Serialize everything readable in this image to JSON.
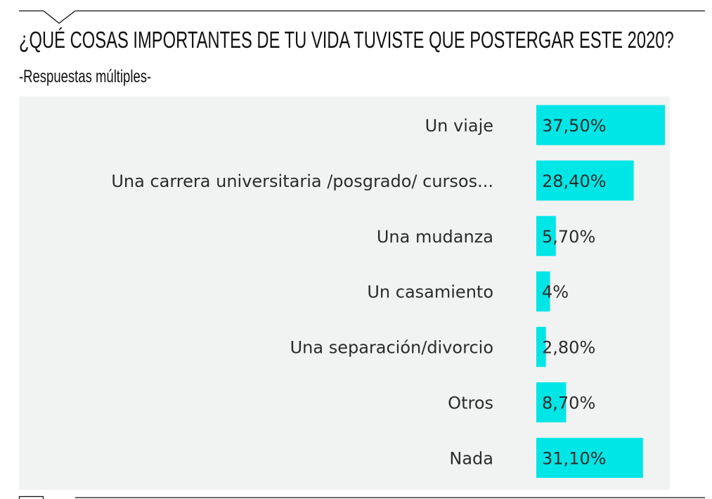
{
  "header": {
    "title": "¿QUÉ COSAS IMPORTANTES DE TU VIDA TUVISTE QUE POSTERGAR ESTE 2020?",
    "subtitle": "-Respuestas múltiples-"
  },
  "chart_data": {
    "type": "bar",
    "orientation": "horizontal",
    "title": "¿QUÉ COSAS IMPORTANTES DE TU VIDA TUVISTE QUE POSTERGAR ESTE 2020?",
    "subtitle": "-Respuestas múltiples-",
    "categories": [
      "Un viaje",
      "Una carrera universitaria /posgrado/ cursos...",
      "Una mudanza",
      "Un casamiento",
      "Una separación/divorcio",
      "Otros",
      "Nada"
    ],
    "values": [
      37.5,
      28.4,
      5.7,
      4,
      2.8,
      8.7,
      31.1
    ],
    "value_labels": [
      "37,50%",
      "28,40%",
      "5,70%",
      "4%",
      "2,80%",
      "8,70%",
      "31,10%"
    ],
    "unit": "%",
    "xlim": [
      0,
      37.5
    ],
    "grid": false,
    "bar_color": "#00e6e6",
    "background_color": "#f1f2f2"
  }
}
